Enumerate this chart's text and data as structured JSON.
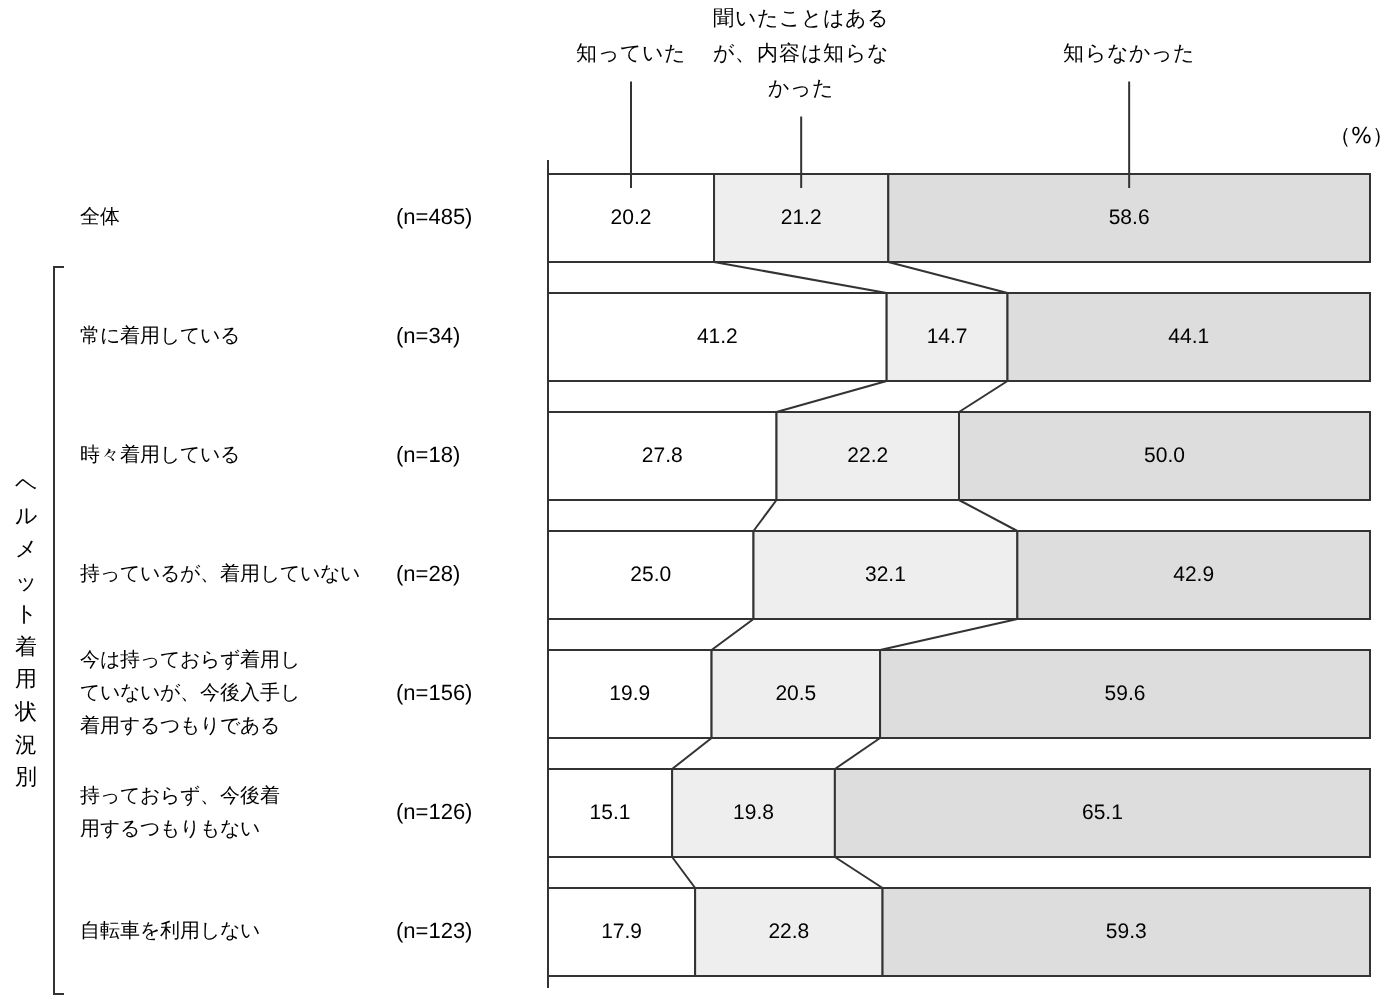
{
  "chart_data": {
    "type": "bar",
    "orientation": "horizontal",
    "stacked": true,
    "xlabel": "（%）",
    "categories": [
      "全体",
      "常に着用している",
      "時々着用している",
      "持っているが、着用していない",
      "今は持っておらず着用していないが、今後入手し着用するつもりである",
      "持っておらず、今後着用するつもりもない",
      "自転車を利用しない"
    ],
    "y2_categories": [
      "(n=485)",
      "(n=34)",
      "(n=18)",
      "(n=28)",
      "(n=156)",
      "(n=126)",
      "(n=123)"
    ],
    "xlim": [
      0,
      100
    ],
    "series": [
      {
        "name": "知っていた",
        "color": "#ffffff",
        "values": [
          20.2,
          41.2,
          27.8,
          25.0,
          19.9,
          15.1,
          17.9
        ],
        "value_labels": [
          "20.2",
          "41.2",
          "27.8",
          "25.0",
          "19.9",
          "15.1",
          "17.9"
        ]
      },
      {
        "name": "聞いたことはあるが、内容は知らなかった",
        "color": "#eeeeee",
        "values": [
          21.2,
          14.7,
          22.2,
          32.1,
          20.5,
          19.8,
          22.8
        ],
        "value_labels": [
          "21.2",
          "14.7",
          "22.2",
          "32.1",
          "20.5",
          "19.8",
          "22.8"
        ]
      },
      {
        "name": "知らなかった",
        "color": "#dddddd",
        "values": [
          58.6,
          44.1,
          50.0,
          42.9,
          59.6,
          65.1,
          59.3
        ],
        "value_labels": [
          "58.6",
          "44.1",
          "50.0",
          "42.9",
          "59.6",
          "65.1",
          "59.3"
        ]
      }
    ],
    "annotations": [
      "ヘルメット着用状況別"
    ]
  }
}
